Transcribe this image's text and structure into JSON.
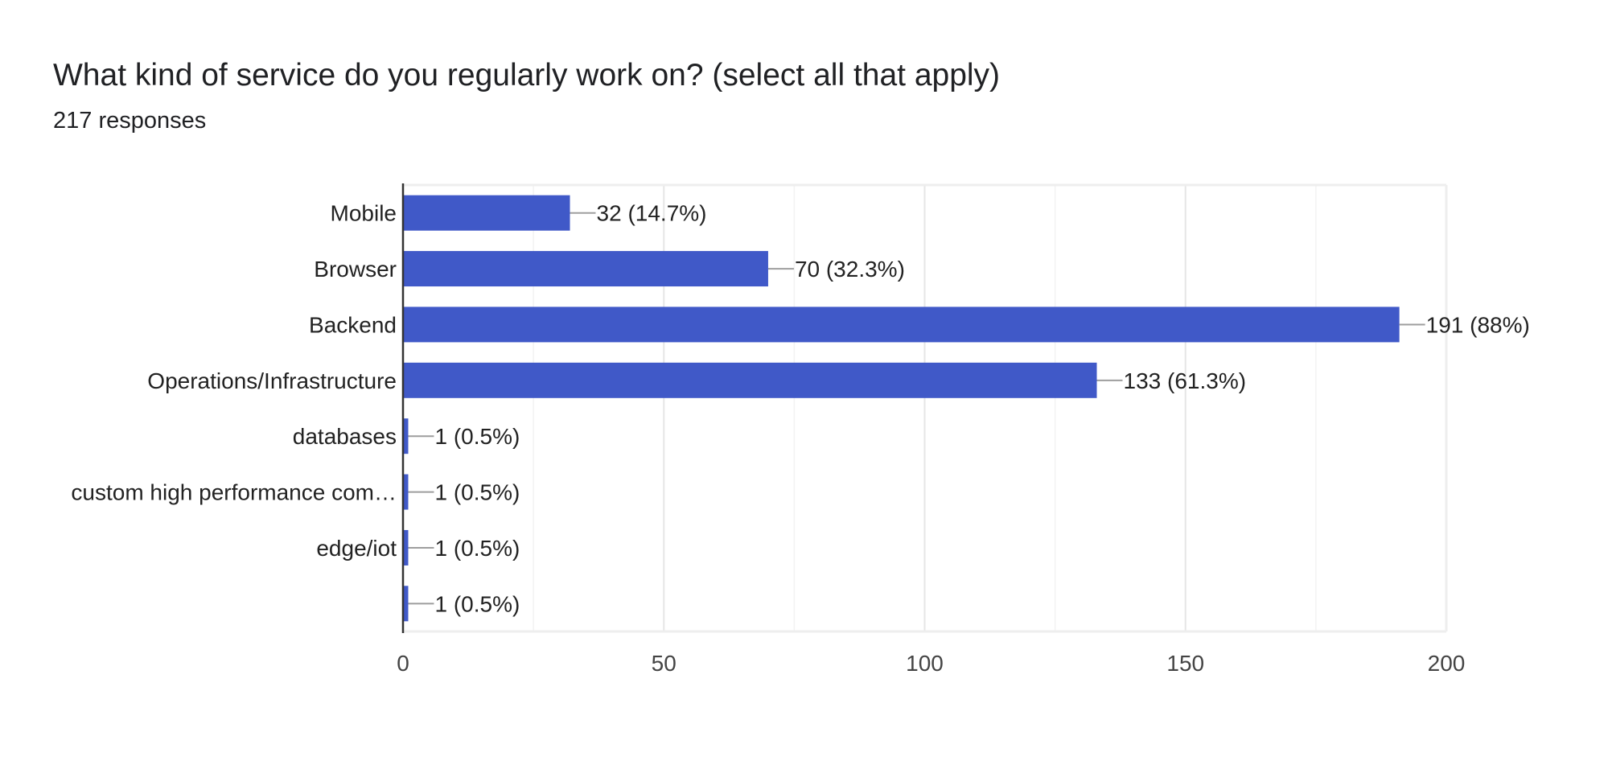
{
  "title": "What kind of service do you regularly work on? (select all that apply)",
  "subtitle": "217 responses",
  "colors": {
    "bar": "#4059c8",
    "grid": "#ebebeb",
    "axis": "#333333",
    "leader": "#9e9e9e"
  },
  "chart_data": {
    "type": "bar",
    "orientation": "horizontal",
    "categories": [
      "Mobile",
      "Browser",
      "Backend",
      "Operations/Infrastructure",
      "databases",
      "custom high performance com…",
      "edge/iot",
      ""
    ],
    "values": [
      32,
      70,
      191,
      133,
      1,
      1,
      1,
      1
    ],
    "data_labels": [
      "32 (14.7%)",
      "70 (32.3%)",
      "191 (88%)",
      "133 (61.3%)",
      "1 (0.5%)",
      "1 (0.5%)",
      "1 (0.5%)",
      "1 (0.5%)"
    ],
    "xlim": [
      0,
      200
    ],
    "xticks": [
      "0",
      "50",
      "100",
      "150",
      "200"
    ],
    "grid": true,
    "legend": "none"
  }
}
